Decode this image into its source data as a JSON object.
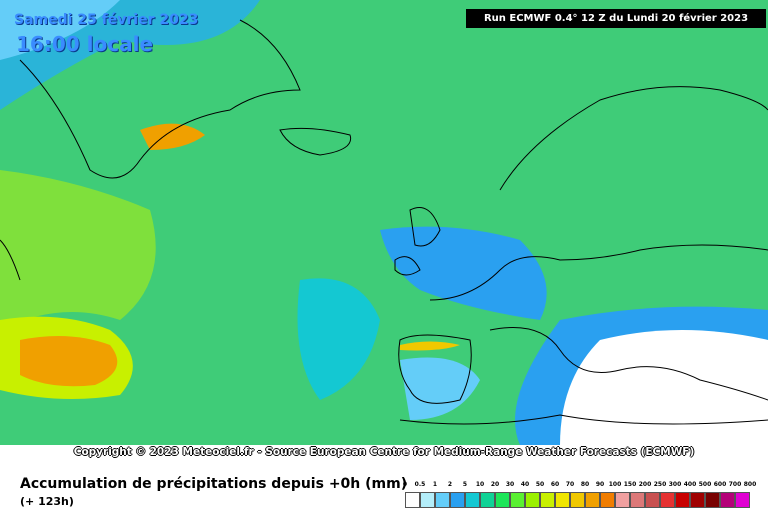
{
  "header": {
    "date": "Samedi 25 février 2023",
    "time": "16:00 locale",
    "run": "Run ECMWF 0.4° 12 Z du Lundi 20 février 2023"
  },
  "map": {
    "copyright": "Copyright © 2023 Meteociel.fr - Source European Centre for Medium-Range Weather Forecasts (ECMWF)"
  },
  "footer": {
    "title": "Accumulation de précipitations depuis +0h (mm)",
    "lead": "(+ 123h)"
  },
  "legend": {
    "labels": [
      "0",
      "0.5",
      "1",
      "2",
      "5",
      "10",
      "20",
      "30",
      "40",
      "50",
      "60",
      "70",
      "80",
      "90",
      "100",
      "150",
      "200",
      "250",
      "300",
      "400",
      "500",
      "600",
      "700",
      "800"
    ],
    "colors": [
      "#ffffff",
      "#b4eefa",
      "#64cdf8",
      "#2aa0f0",
      "#14c8d2",
      "#10d296",
      "#1ee65a",
      "#5af032",
      "#9bf000",
      "#c8f000",
      "#f0e600",
      "#f0c800",
      "#f0a000",
      "#f07d00",
      "#f0a0a0",
      "#dc7878",
      "#c85050",
      "#e63232",
      "#c80000",
      "#a00000",
      "#780000",
      "#b40078",
      "#e000d2"
    ]
  }
}
